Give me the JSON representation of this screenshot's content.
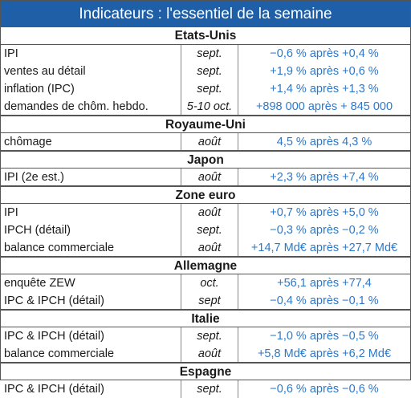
{
  "title": "Indicateurs : l'essentiel de la semaine",
  "sections": [
    {
      "name": "Etats-Unis",
      "rows": [
        {
          "label": "IPI",
          "period": "sept.",
          "value": "−0,6 % après +0,4 %"
        },
        {
          "label": "ventes au détail",
          "period": "sept.",
          "value": "+1,9 % après +0,6 %"
        },
        {
          "label": "inflation (IPC)",
          "period": "sept.",
          "value": "+1,4 % après +1,3 %"
        },
        {
          "label": "demandes de chôm. hebdo.",
          "period": "5-10 oct.",
          "value": "+898 000 après + 845 000"
        }
      ]
    },
    {
      "name": "Royaume-Uni",
      "rows": [
        {
          "label": "chômage",
          "period": "août",
          "value": "4,5 % après 4,3 %"
        }
      ]
    },
    {
      "name": "Japon",
      "rows": [
        {
          "label": "IPI (2e est.)",
          "period": "août",
          "value": "+2,3 % après +7,4 %"
        }
      ]
    },
    {
      "name": "Zone euro",
      "rows": [
        {
          "label": "IPI",
          "period": "août",
          "value": "+0,7 % après +5,0 %"
        },
        {
          "label": "IPCH (détail)",
          "period": "sept.",
          "value": "−0,3 % après −0,2 %"
        },
        {
          "label": "balance commerciale",
          "period": "août",
          "value": "+14,7 Md€ après +27,7 Md€"
        }
      ]
    },
    {
      "name": "Allemagne",
      "rows": [
        {
          "label": "enquête ZEW",
          "period": "oct.",
          "value": "+56,1 après +77,4"
        },
        {
          "label": "IPC & IPCH (détail)",
          "period": "sept",
          "value": "−0,4 % après −0,1 %"
        }
      ]
    },
    {
      "name": "Italie",
      "rows": [
        {
          "label": "IPC & IPCH (détail)",
          "period": "sept.",
          "value": "−1,0 % après −0,5 %"
        },
        {
          "label": "balance commerciale",
          "period": "août",
          "value": "+5,8 Md€ après +6,2 Md€"
        }
      ]
    },
    {
      "name": "Espagne",
      "rows": [
        {
          "label": "IPC & IPCH (détail)",
          "period": "sept.",
          "value": "−0,6 % après −0,6 %"
        }
      ]
    }
  ]
}
